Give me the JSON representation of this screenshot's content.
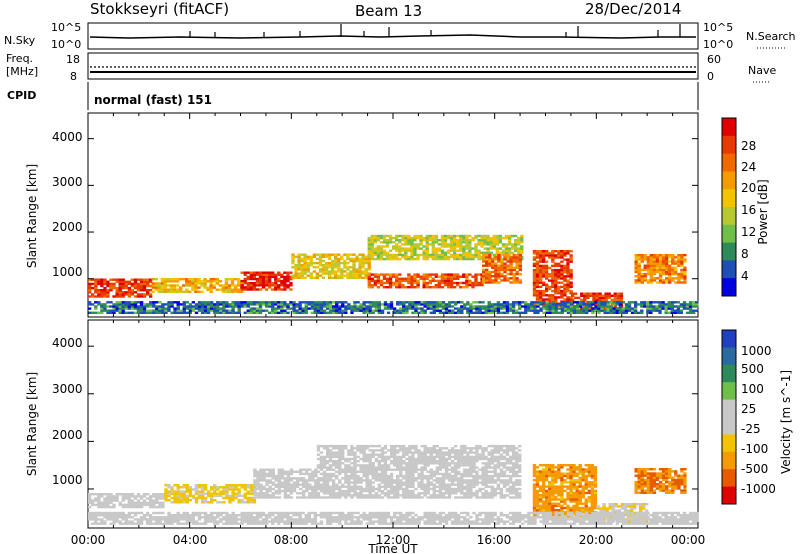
{
  "header": {
    "station": "Stokkseyri (fitACF)",
    "beam": "Beam 13",
    "date": "28/Dec/2014"
  },
  "strips": {
    "nsky_label": "N.Sky",
    "nsky_ticks": [
      "10^5",
      "10^0"
    ],
    "nsearch_label": "N.Search",
    "nsearch_ticks": [
      "10^5",
      "10^0"
    ],
    "freq_label_1": "Freq.",
    "freq_label_2": "[MHz]",
    "freq_ticks": [
      "18",
      "8"
    ],
    "nave_label": "Nave",
    "nave_ticks": [
      "60",
      "0"
    ],
    "cpid_label": "CPID",
    "cpid_value": "normal (fast) 151"
  },
  "chart_data": [
    {
      "type": "heatmap",
      "panel": "power",
      "ylabel": "Slant Range [km]",
      "xlabel": "",
      "x_range_hours": [
        0,
        24
      ],
      "ylim": [
        180,
        4550
      ],
      "yticks": [
        "1000",
        "2000",
        "3000",
        "4000"
      ],
      "colorbar_label": "Power [dB]",
      "colorbar_ticks": [
        "28",
        "24",
        "20",
        "16",
        "12",
        "8",
        "4"
      ],
      "colorbar_colors": [
        "#0000e0",
        "#1e4fb4",
        "#2f8a5a",
        "#6fbf4a",
        "#b8c832",
        "#f2c400",
        "#f59a00",
        "#f06800",
        "#e83a00",
        "#e00000"
      ],
      "regions": [
        {
          "t0": 0.0,
          "t1": 2.5,
          "r0": 600,
          "r1": 1000,
          "v": 26
        },
        {
          "t0": 2.5,
          "t1": 6.0,
          "r0": 700,
          "r1": 1000,
          "v": 18
        },
        {
          "t0": 6.0,
          "t1": 8.0,
          "r0": 750,
          "r1": 1150,
          "v": 27
        },
        {
          "t0": 8.0,
          "t1": 11.0,
          "r0": 1000,
          "r1": 1500,
          "v": 16
        },
        {
          "t0": 11.0,
          "t1": 15.5,
          "r0": 800,
          "r1": 1100,
          "v": 24
        },
        {
          "t0": 11.0,
          "t1": 17.0,
          "r0": 1400,
          "r1": 1900,
          "v": 14
        },
        {
          "t0": 15.5,
          "t1": 17.0,
          "r0": 900,
          "r1": 1500,
          "v": 22
        },
        {
          "t0": 17.5,
          "t1": 19.0,
          "r0": 400,
          "r1": 1600,
          "v": 25
        },
        {
          "t0": 19.0,
          "t1": 21.0,
          "r0": 300,
          "r1": 700,
          "v": 26
        },
        {
          "t0": 21.5,
          "t1": 23.5,
          "r0": 900,
          "r1": 1500,
          "v": 21
        },
        {
          "t0": 0.0,
          "t1": 24.0,
          "r0": 250,
          "r1": 500,
          "v": 6
        }
      ]
    },
    {
      "type": "heatmap",
      "panel": "velocity",
      "ylabel": "Slant Range [km]",
      "xlabel": "Time UT",
      "x_range_hours": [
        0,
        24
      ],
      "ylim": [
        180,
        4550
      ],
      "yticks": [
        "1000",
        "2000",
        "3000",
        "4000"
      ],
      "xticks": [
        "00:00",
        "04:00",
        "08:00",
        "12:00",
        "16:00",
        "20:00",
        "00:00"
      ],
      "colorbar_label": "Velocity [m s^-1]",
      "colorbar_ticks": [
        "1000",
        "500",
        "100",
        "25",
        "-25",
        "-100",
        "-500",
        "-1000"
      ],
      "colorbar_colors": [
        "#2040c0",
        "#2a6aa0",
        "#2f8a5a",
        "#6fbf4a",
        "#c8c8c8",
        "#c8c8c8",
        "#f2c400",
        "#f59a00",
        "#e85a00",
        "#e00000"
      ],
      "regions": [
        {
          "t0": 0.0,
          "t1": 3.0,
          "r0": 600,
          "r1": 900,
          "v": 25
        },
        {
          "t0": 3.0,
          "t1": 6.5,
          "r0": 700,
          "r1": 1100,
          "v": -300
        },
        {
          "t0": 6.5,
          "t1": 9.0,
          "r0": 800,
          "r1": 1400,
          "v": -80
        },
        {
          "t0": 9.0,
          "t1": 17.0,
          "r0": 800,
          "r1": 1900,
          "v": 0
        },
        {
          "t0": 17.5,
          "t1": 20.0,
          "r0": 400,
          "r1": 1500,
          "v": -600
        },
        {
          "t0": 20.0,
          "t1": 22.0,
          "r0": 300,
          "r1": 700,
          "v": -200
        },
        {
          "t0": 21.5,
          "t1": 23.5,
          "r0": 900,
          "r1": 1400,
          "v": -700
        },
        {
          "t0": 0.0,
          "t1": 24.0,
          "r0": 250,
          "r1": 500,
          "v": 50
        }
      ]
    }
  ]
}
